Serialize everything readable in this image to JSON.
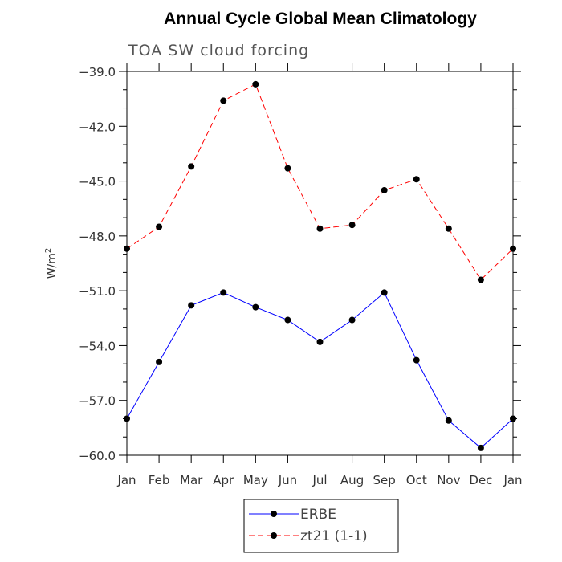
{
  "chart_data": {
    "type": "line",
    "title": "Annual Cycle Global Mean Climatology",
    "subtitle": "TOA SW cloud forcing",
    "ylabel_base": "W/m",
    "ylabel_sup": "2",
    "ylim": [
      -60.0,
      -39.0
    ],
    "yticks": [
      "-39.0",
      "-42.0",
      "-45.0",
      "-48.0",
      "-51.0",
      "-54.0",
      "-57.0",
      "-60.0"
    ],
    "categories": [
      "Jan",
      "Feb",
      "Mar",
      "Apr",
      "May",
      "Jun",
      "Jul",
      "Aug",
      "Sep",
      "Oct",
      "Nov",
      "Dec",
      "Jan"
    ],
    "grid": false,
    "legend_position": "bottom-center",
    "series": [
      {
        "name": "ERBE",
        "color": "#0000ff",
        "dash": "solid",
        "values": [
          -58.0,
          -54.9,
          -51.8,
          -51.1,
          -51.9,
          -52.6,
          -53.8,
          -52.6,
          -51.1,
          -54.8,
          -58.1,
          -59.6,
          -58.0
        ]
      },
      {
        "name": "zt21 (1-1)",
        "color": "#ff0000",
        "dash": "dashed",
        "values": [
          -48.7,
          -47.5,
          -44.2,
          -40.6,
          -39.7,
          -44.3,
          -47.6,
          -47.4,
          -45.5,
          -44.9,
          -47.6,
          -50.4,
          -48.7
        ]
      }
    ]
  }
}
